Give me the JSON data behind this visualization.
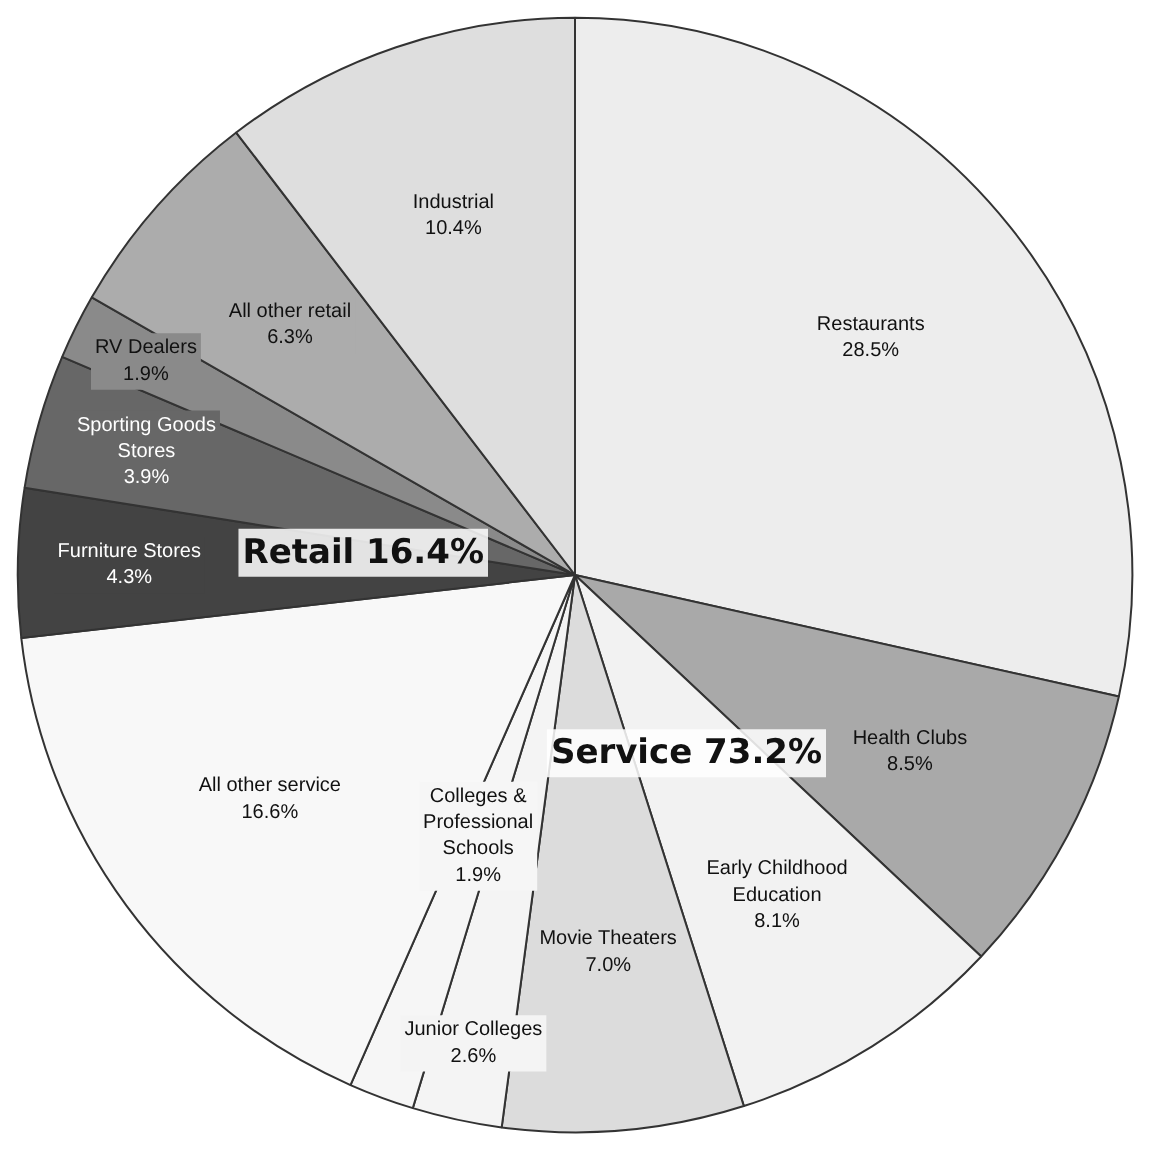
{
  "chart_data": {
    "type": "pie",
    "categories": [
      "Restaurants",
      "Health Clubs",
      "Early Childhood Education",
      "Movie Theaters",
      "Junior Colleges",
      "Colleges & Professional Schools",
      "All other service",
      "Furniture Stores",
      "Sporting Goods Stores",
      "RV Dealers",
      "All other retail",
      "Industrial"
    ],
    "values": [
      28.5,
      8.5,
      8.1,
      7.0,
      2.6,
      1.9,
      16.6,
      4.3,
      3.9,
      1.9,
      6.3,
      10.4
    ],
    "colors": [
      "#ededed",
      "#a9a9a9",
      "#f2f2f2",
      "#dcdcdc",
      "#f4f4f4",
      "#f6f6f6",
      "#f8f8f8",
      "#434343",
      "#676767",
      "#8a8a8a",
      "#acacac",
      "#dedede"
    ],
    "value_labels": [
      "28.5%",
      "8.5%",
      "8.1%",
      "7.0%",
      "2.6%",
      "1.9%",
      "16.6%",
      "4.3%",
      "3.9%",
      "1.9%",
      "6.3%",
      "10.4%"
    ],
    "annotations": [
      "Service 73.2%",
      "Retail 16.4%"
    ]
  }
}
